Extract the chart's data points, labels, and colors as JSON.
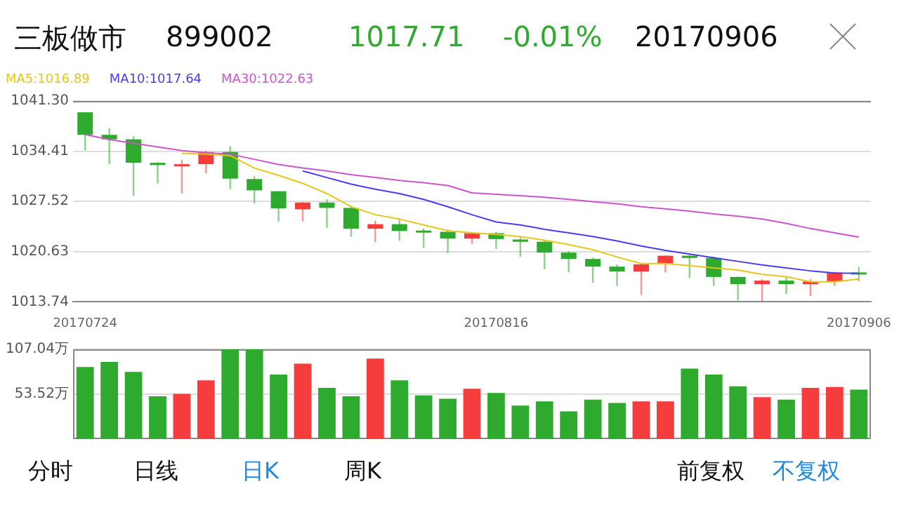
{
  "chart_data": [
    {
      "type": "candlestick",
      "title": "三板做市",
      "annotations": [
        "899002",
        "1017.71",
        "-0.01%",
        "20170906"
      ],
      "categories": [
        "20170724",
        null,
        null,
        null,
        null,
        null,
        null,
        null,
        null,
        null,
        null,
        null,
        null,
        null,
        null,
        null,
        null,
        "20170816",
        null,
        null,
        null,
        null,
        null,
        null,
        null,
        null,
        null,
        null,
        null,
        null,
        null,
        null,
        "20170906"
      ],
      "ohlc": [
        [
          1039.75,
          1039.75,
          1034.49,
          1036.66
        ],
        [
          1036.66,
          1037.59,
          1032.63,
          1036.04
        ],
        [
          1036.04,
          1036.47,
          1028.3,
          1032.82
        ],
        [
          1032.82,
          1032.94,
          1029.97,
          1032.51
        ],
        [
          1032.51,
          1033.25,
          1028.61,
          1032.63
        ],
        [
          1032.63,
          1034.49,
          1031.4,
          1034.3
        ],
        [
          1034.3,
          1035.11,
          1029.23,
          1030.65
        ],
        [
          1030.59,
          1030.96,
          1027.25,
          1029.04
        ],
        [
          1028.92,
          1028.92,
          1024.77,
          1026.57
        ],
        [
          1026.44,
          1027.43,
          1024.77,
          1027.37
        ],
        [
          1027.37,
          1027.81,
          1023.91,
          1026.63
        ],
        [
          1026.63,
          1026.94,
          1022.67,
          1023.78
        ],
        [
          1023.78,
          1024.9,
          1021.93,
          1024.4
        ],
        [
          1024.4,
          1025.21,
          1022.11,
          1023.47
        ],
        [
          1023.53,
          1023.84,
          1021.18,
          1023.4
        ],
        [
          1023.35,
          1023.66,
          1020.44,
          1022.42
        ],
        [
          1022.42,
          1023.22,
          1021.68,
          1023.16
        ],
        [
          1023.16,
          1023.35,
          1021.0,
          1022.36
        ],
        [
          1022.3,
          1022.61,
          1019.94,
          1021.99
        ],
        [
          1021.99,
          1022.11,
          1018.21,
          1020.5
        ],
        [
          1020.5,
          1020.69,
          1017.78,
          1019.63
        ],
        [
          1019.63,
          1019.82,
          1016.35,
          1018.58
        ],
        [
          1018.58,
          1018.89,
          1015.92,
          1017.9
        ],
        [
          1017.9,
          1019.02,
          1014.68,
          1018.89
        ],
        [
          1019.02,
          1020.13,
          1017.78,
          1020.07
        ],
        [
          1020.07,
          1020.25,
          1017.04,
          1019.76
        ],
        [
          1019.76,
          1019.94,
          1015.92,
          1017.16
        ],
        [
          1017.16,
          1017.22,
          1013.94,
          1016.17
        ],
        [
          1016.17,
          1016.85,
          1013.76,
          1016.66
        ],
        [
          1016.66,
          1017.16,
          1014.81,
          1016.17
        ],
        [
          1016.17,
          1016.85,
          1014.56,
          1016.54
        ],
        [
          1016.54,
          1017.9,
          1015.92,
          1017.78
        ],
        [
          1017.78,
          1018.52,
          1016.54,
          1017.71
        ]
      ],
      "colors": [
        "#2eaa2e",
        "#2eaa2e",
        "#2eaa2e",
        "#2eaa2e",
        "#f53d3d",
        "#f53d3d",
        "#2eaa2e",
        "#2eaa2e",
        "#2eaa2e",
        "#f53d3d",
        "#2eaa2e",
        "#2eaa2e",
        "#f53d3d",
        "#2eaa2e",
        "#2eaa2e",
        "#2eaa2e",
        "#f53d3d",
        "#2eaa2e",
        "#2eaa2e",
        "#2eaa2e",
        "#2eaa2e",
        "#2eaa2e",
        "#2eaa2e",
        "#f53d3d",
        "#f53d3d",
        "#2eaa2e",
        "#2eaa2e",
        "#2eaa2e",
        "#f53d3d",
        "#2eaa2e",
        "#f53d3d",
        "#f53d3d",
        "#2eaa2e"
      ],
      "series": [
        {
          "type": "line",
          "name": "MA5:1016.89",
          "color": "#e6c619",
          "values": [
            null,
            null,
            null,
            null,
            1034.1,
            1034.0,
            1033.8,
            1032.1,
            1031.1,
            1030.0,
            1028.6,
            1026.8,
            1025.7,
            1025.1,
            1024.3,
            1023.5,
            1023.2,
            1023.0,
            1022.7,
            1022.2,
            1021.6,
            1020.9,
            1019.9,
            1019.0,
            1019.0,
            1018.7,
            1018.4,
            1018.1,
            1017.5,
            1017.2,
            1016.5,
            1016.5,
            1016.89
          ]
        },
        {
          "type": "line",
          "name": "MA10:1017.64",
          "color": "#4a3cf0",
          "values": [
            null,
            null,
            null,
            null,
            null,
            null,
            null,
            null,
            null,
            1031.7,
            1030.8,
            1029.9,
            1029.2,
            1028.6,
            1027.8,
            1026.8,
            1025.7,
            1024.7,
            1024.3,
            1023.7,
            1023.2,
            1022.7,
            1022.1,
            1021.4,
            1020.8,
            1020.3,
            1019.8,
            1019.3,
            1018.8,
            1018.4,
            1018.0,
            1017.7,
            1017.64
          ]
        },
        {
          "type": "line",
          "name": "MA30:1022.63",
          "color": "#cc55cc",
          "values": [
            1036.7,
            1036.0,
            1035.5,
            1035.0,
            1034.5,
            1034.2,
            1034.0,
            1033.3,
            1032.6,
            1032.1,
            1031.7,
            1031.2,
            1030.8,
            1030.4,
            1030.1,
            1029.7,
            1028.7,
            1028.5,
            1028.3,
            1028.1,
            1027.8,
            1027.5,
            1027.2,
            1026.8,
            1026.5,
            1026.2,
            1025.8,
            1025.5,
            1025.1,
            1024.5,
            1023.8,
            1023.2,
            1022.63
          ]
        }
      ],
      "ylim": [
        1013.74,
        1041.3
      ],
      "yticks": [
        1013.74,
        1020.63,
        1027.52,
        1034.41,
        {
          "value": 1041.3,
          "label": "1041.30"
        }
      ],
      "grid": "y",
      "legend": "top left"
    },
    {
      "type": "bar",
      "annotations": [
        "分时",
        "日线",
        "日K",
        "周K",
        "前复权",
        "不复权"
      ],
      "categories": [
        "20170724",
        null,
        null,
        null,
        null,
        null,
        null,
        null,
        null,
        null,
        null,
        null,
        null,
        null,
        null,
        null,
        null,
        "20170816",
        null,
        null,
        null,
        null,
        null,
        null,
        null,
        null,
        null,
        null,
        null,
        null,
        null,
        null,
        "20170906"
      ],
      "values": [
        86,
        92,
        80,
        51,
        54,
        70,
        107.04,
        107.04,
        77,
        90,
        61,
        51,
        96,
        70,
        52,
        48,
        60,
        55,
        40,
        45,
        33,
        47,
        43,
        45,
        45,
        84,
        77,
        63,
        50,
        47,
        61,
        62,
        59
      ],
      "colors": [
        "#2eaa2e",
        "#2eaa2e",
        "#2eaa2e",
        "#2eaa2e",
        "#f53d3d",
        "#f53d3d",
        "#2eaa2e",
        "#2eaa2e",
        "#2eaa2e",
        "#f53d3d",
        "#2eaa2e",
        "#2eaa2e",
        "#f53d3d",
        "#2eaa2e",
        "#2eaa2e",
        "#2eaa2e",
        "#f53d3d",
        "#2eaa2e",
        "#2eaa2e",
        "#2eaa2e",
        "#2eaa2e",
        "#2eaa2e",
        "#2eaa2e",
        "#f53d3d",
        "#f53d3d",
        "#2eaa2e",
        "#2eaa2e",
        "#2eaa2e",
        "#f53d3d",
        "#2eaa2e",
        "#f53d3d",
        "#f53d3d",
        "#2eaa2e"
      ],
      "ylim": [
        0,
        107.04
      ],
      "yticks": [
        {
          "value": 53.52,
          "label": "53.52万"
        },
        {
          "value": 107.04,
          "label": "107.04万"
        }
      ],
      "grid": "y",
      "tick_labels": "y"
    }
  ]
}
